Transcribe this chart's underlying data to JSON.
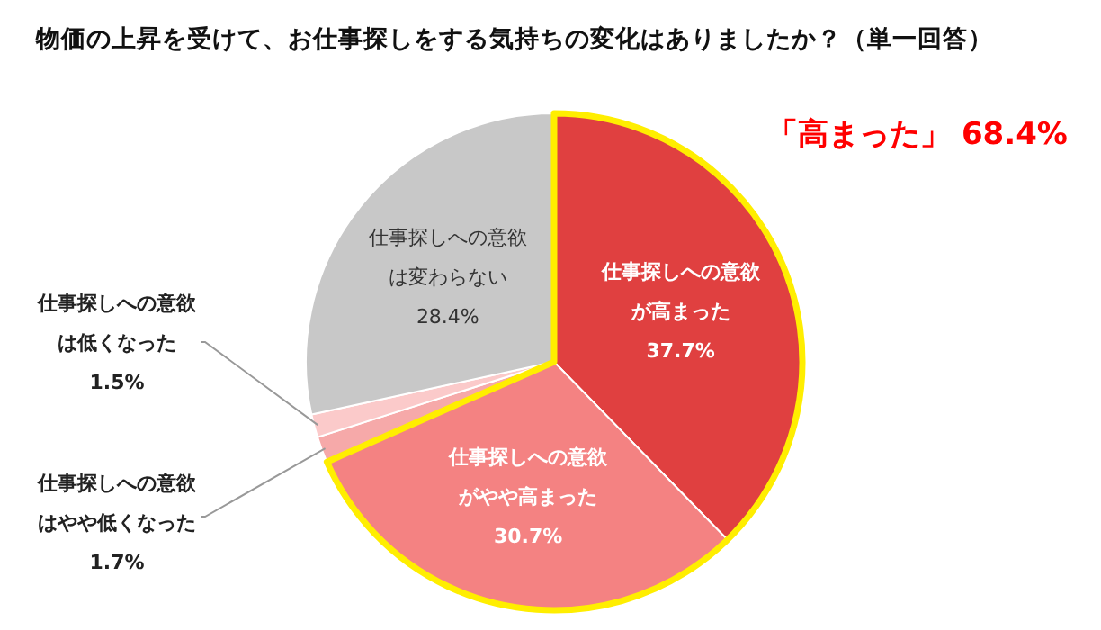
{
  "chart_data": {
    "type": "pie",
    "title": "物価の上昇を受けて、お仕事探しをする気持ちの変化はありましたか？（単一回答）",
    "categories": [
      "仕事探しへの意欲が高まった",
      "仕事探しへの意欲がやや高まった",
      "仕事探しへの意欲はやや低くなった",
      "仕事探しへの意欲は低くなった",
      "仕事探しへの意欲は変わらない"
    ],
    "values": [
      37.7,
      30.7,
      1.7,
      1.5,
      28.4
    ],
    "colors": [
      "#e04040",
      "#f48282",
      "#f6a9a9",
      "#fbcaca",
      "#c8c8c8"
    ],
    "value_labels": [
      "37.7%",
      "30.7%",
      "1.7%",
      "1.5%",
      "28.4%"
    ],
    "annotations": [
      "「高まった」 68.4%"
    ]
  }
}
